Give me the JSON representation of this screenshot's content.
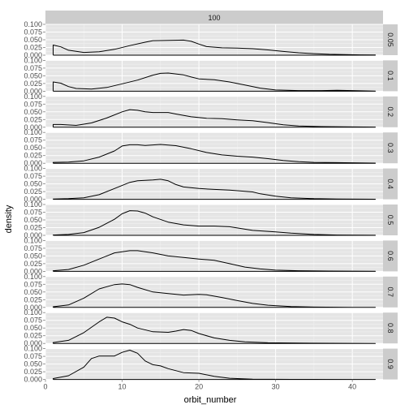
{
  "chart_data": {
    "type": "area",
    "xlabel": "orbit_number",
    "ylabel": "density",
    "column_strip": "100",
    "xlim": [
      0,
      44
    ],
    "ylim": [
      0,
      0.1
    ],
    "x_ticks": [
      0,
      10,
      20,
      30,
      40
    ],
    "x_tick_labels": [
      "0",
      "10",
      "20",
      "30",
      "40"
    ],
    "y_ticks": [
      0,
      0.025,
      0.05,
      0.075,
      0.1
    ],
    "y_tick_labels": [
      "0.000",
      "0.025",
      "0.050",
      "0.075",
      "0.100"
    ],
    "grid": true,
    "colors": {
      "panel_bg": "#e5e5e5",
      "grid_major": "#ffffff",
      "grid_minor": "#f2f2f2",
      "strip_bg": "#cccccc",
      "line": "#000000"
    },
    "facets": [
      {
        "label": "0.05",
        "points": [
          [
            1,
            0
          ],
          [
            1,
            0.033
          ],
          [
            2,
            0.027
          ],
          [
            3,
            0.016
          ],
          [
            5,
            0.009
          ],
          [
            7,
            0.011
          ],
          [
            9,
            0.019
          ],
          [
            11,
            0.031
          ],
          [
            13,
            0.042
          ],
          [
            14,
            0.047
          ],
          [
            16,
            0.048
          ],
          [
            18,
            0.049
          ],
          [
            19,
            0.045
          ],
          [
            20,
            0.036
          ],
          [
            21,
            0.028
          ],
          [
            23,
            0.024
          ],
          [
            25,
            0.023
          ],
          [
            27,
            0.021
          ],
          [
            29,
            0.017
          ],
          [
            31,
            0.012
          ],
          [
            33,
            0.008
          ],
          [
            35,
            0.005
          ],
          [
            37,
            0.003
          ],
          [
            39,
            0.002
          ],
          [
            41,
            0.001
          ],
          [
            43,
            0.0005
          ]
        ]
      },
      {
        "label": "0.1",
        "points": [
          [
            1,
            0
          ],
          [
            1,
            0.03
          ],
          [
            2,
            0.026
          ],
          [
            3,
            0.015
          ],
          [
            4,
            0.009
          ],
          [
            6,
            0.007
          ],
          [
            8,
            0.012
          ],
          [
            10,
            0.024
          ],
          [
            12,
            0.036
          ],
          [
            14,
            0.052
          ],
          [
            15,
            0.058
          ],
          [
            16,
            0.059
          ],
          [
            18,
            0.053
          ],
          [
            19,
            0.046
          ],
          [
            20,
            0.04
          ],
          [
            22,
            0.037
          ],
          [
            24,
            0.03
          ],
          [
            26,
            0.02
          ],
          [
            28,
            0.01
          ],
          [
            30,
            0.004
          ],
          [
            33,
            0.002
          ],
          [
            36,
            0.002
          ],
          [
            38,
            0.003
          ],
          [
            40,
            0.002
          ],
          [
            43,
            0.0005
          ]
        ]
      },
      {
        "label": "0.2",
        "points": [
          [
            1,
            0
          ],
          [
            1,
            0.009
          ],
          [
            2,
            0.009
          ],
          [
            4,
            0.006
          ],
          [
            6,
            0.014
          ],
          [
            8,
            0.03
          ],
          [
            10,
            0.05
          ],
          [
            11,
            0.057
          ],
          [
            12,
            0.055
          ],
          [
            13,
            0.05
          ],
          [
            14,
            0.048
          ],
          [
            16,
            0.048
          ],
          [
            17,
            0.043
          ],
          [
            19,
            0.034
          ],
          [
            21,
            0.029
          ],
          [
            23,
            0.028
          ],
          [
            25,
            0.024
          ],
          [
            27,
            0.021
          ],
          [
            29,
            0.015
          ],
          [
            31,
            0.008
          ],
          [
            33,
            0.004
          ],
          [
            36,
            0.002
          ],
          [
            40,
            0.001
          ],
          [
            43,
            0.0005
          ]
        ]
      },
      {
        "label": "0.3",
        "points": [
          [
            1,
            0
          ],
          [
            1,
            0.003
          ],
          [
            3,
            0.004
          ],
          [
            5,
            0.008
          ],
          [
            7,
            0.02
          ],
          [
            9,
            0.04
          ],
          [
            10,
            0.056
          ],
          [
            11,
            0.06
          ],
          [
            12,
            0.06
          ],
          [
            13,
            0.058
          ],
          [
            15,
            0.061
          ],
          [
            17,
            0.057
          ],
          [
            19,
            0.047
          ],
          [
            21,
            0.035
          ],
          [
            23,
            0.027
          ],
          [
            25,
            0.023
          ],
          [
            27,
            0.02
          ],
          [
            29,
            0.015
          ],
          [
            31,
            0.009
          ],
          [
            33,
            0.005
          ],
          [
            35,
            0.003
          ],
          [
            38,
            0.002
          ],
          [
            41,
            0.001
          ],
          [
            43,
            0.0005
          ]
        ]
      },
      {
        "label": "0.4",
        "points": [
          [
            1,
            0
          ],
          [
            1,
            0.001
          ],
          [
            3,
            0.002
          ],
          [
            5,
            0.005
          ],
          [
            7,
            0.015
          ],
          [
            9,
            0.035
          ],
          [
            11,
            0.055
          ],
          [
            12,
            0.06
          ],
          [
            14,
            0.063
          ],
          [
            15,
            0.065
          ],
          [
            16,
            0.06
          ],
          [
            17,
            0.048
          ],
          [
            18,
            0.04
          ],
          [
            20,
            0.035
          ],
          [
            22,
            0.032
          ],
          [
            24,
            0.03
          ],
          [
            27,
            0.024
          ],
          [
            28,
            0.018
          ],
          [
            30,
            0.01
          ],
          [
            32,
            0.005
          ],
          [
            35,
            0.002
          ],
          [
            38,
            0.001
          ],
          [
            43,
            0.0003
          ]
        ]
      },
      {
        "label": "0.5",
        "points": [
          [
            1,
            0
          ],
          [
            1,
            0.001
          ],
          [
            3,
            0.003
          ],
          [
            5,
            0.009
          ],
          [
            7,
            0.026
          ],
          [
            9,
            0.052
          ],
          [
            10,
            0.07
          ],
          [
            11,
            0.08
          ],
          [
            12,
            0.079
          ],
          [
            13,
            0.072
          ],
          [
            14,
            0.06
          ],
          [
            16,
            0.043
          ],
          [
            18,
            0.034
          ],
          [
            20,
            0.03
          ],
          [
            22,
            0.03
          ],
          [
            24,
            0.028
          ],
          [
            26,
            0.02
          ],
          [
            27,
            0.016
          ],
          [
            30,
            0.011
          ],
          [
            32,
            0.007
          ],
          [
            35,
            0.003
          ],
          [
            38,
            0.001
          ],
          [
            43,
            0.0002
          ]
        ]
      },
      {
        "label": "0.6",
        "points": [
          [
            1,
            0
          ],
          [
            1,
            0.002
          ],
          [
            3,
            0.006
          ],
          [
            5,
            0.02
          ],
          [
            7,
            0.04
          ],
          [
            9,
            0.06
          ],
          [
            11,
            0.067
          ],
          [
            12,
            0.067
          ],
          [
            14,
            0.06
          ],
          [
            16,
            0.05
          ],
          [
            18,
            0.045
          ],
          [
            20,
            0.04
          ],
          [
            22,
            0.036
          ],
          [
            24,
            0.025
          ],
          [
            26,
            0.014
          ],
          [
            28,
            0.008
          ],
          [
            30,
            0.004
          ],
          [
            33,
            0.002
          ],
          [
            37,
            0.001
          ],
          [
            43,
            0.0002
          ]
        ]
      },
      {
        "label": "0.7",
        "points": [
          [
            1,
            0
          ],
          [
            1,
            0.002
          ],
          [
            3,
            0.008
          ],
          [
            5,
            0.03
          ],
          [
            7,
            0.06
          ],
          [
            9,
            0.074
          ],
          [
            10,
            0.076
          ],
          [
            11,
            0.074
          ],
          [
            12,
            0.065
          ],
          [
            14,
            0.05
          ],
          [
            16,
            0.045
          ],
          [
            18,
            0.04
          ],
          [
            20,
            0.042
          ],
          [
            21,
            0.041
          ],
          [
            23,
            0.032
          ],
          [
            25,
            0.022
          ],
          [
            27,
            0.013
          ],
          [
            29,
            0.007
          ],
          [
            32,
            0.003
          ],
          [
            35,
            0.001
          ],
          [
            40,
            0.0003
          ],
          [
            43,
            0.0001
          ]
        ]
      },
      {
        "label": "0.8",
        "points": [
          [
            1,
            0
          ],
          [
            1,
            0.003
          ],
          [
            3,
            0.01
          ],
          [
            5,
            0.035
          ],
          [
            7,
            0.07
          ],
          [
            8,
            0.085
          ],
          [
            9,
            0.082
          ],
          [
            10,
            0.07
          ],
          [
            11,
            0.062
          ],
          [
            12,
            0.05
          ],
          [
            14,
            0.038
          ],
          [
            16,
            0.036
          ],
          [
            17,
            0.04
          ],
          [
            18,
            0.045
          ],
          [
            19,
            0.042
          ],
          [
            20,
            0.032
          ],
          [
            22,
            0.018
          ],
          [
            24,
            0.01
          ],
          [
            26,
            0.005
          ],
          [
            29,
            0.002
          ],
          [
            33,
            0.001
          ],
          [
            43,
            0.0001
          ]
        ]
      },
      {
        "label": "0.9",
        "points": [
          [
            1,
            0
          ],
          [
            1,
            0.003
          ],
          [
            3,
            0.012
          ],
          [
            5,
            0.04
          ],
          [
            6,
            0.068
          ],
          [
            7,
            0.076
          ],
          [
            9,
            0.076
          ],
          [
            10,
            0.088
          ],
          [
            11,
            0.095
          ],
          [
            12,
            0.085
          ],
          [
            13,
            0.06
          ],
          [
            14,
            0.048
          ],
          [
            15,
            0.044
          ],
          [
            16,
            0.035
          ],
          [
            18,
            0.022
          ],
          [
            20,
            0.02
          ],
          [
            22,
            0.01
          ],
          [
            24,
            0.004
          ],
          [
            27,
            0.001
          ],
          [
            32,
            0.0003
          ],
          [
            43,
            0.0001
          ]
        ]
      }
    ]
  }
}
